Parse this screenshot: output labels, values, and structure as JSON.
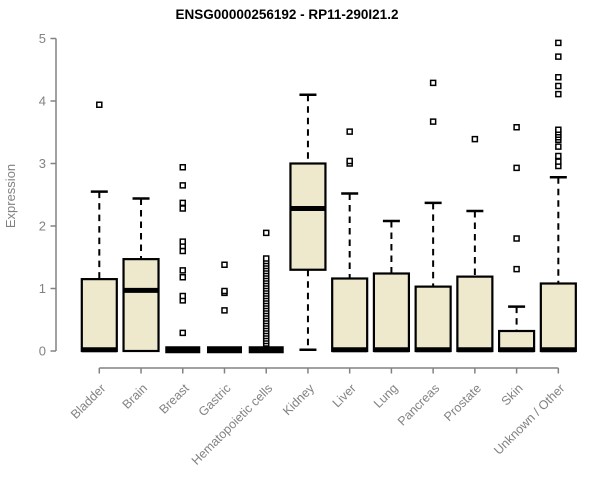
{
  "chart_data": {
    "type": "boxplot",
    "title": "ENSG00000256192 - RP11-290I21.2",
    "ylabel": "Expression",
    "xlabel": "",
    "ylim": [
      0,
      5
    ],
    "yticks": [
      0,
      1,
      2,
      3,
      4,
      5
    ],
    "grid": false,
    "legend": false,
    "categories": [
      "Bladder",
      "Brain",
      "Breast",
      "Gastric",
      "Hematopoietic cells",
      "Kidney",
      "Liver",
      "Lung",
      "Pancreas",
      "Prostate",
      "Skin",
      "Unknown / Other"
    ],
    "series": [
      {
        "category": "Bladder",
        "low": 0,
        "q1": 0,
        "median": 0.02,
        "q3": 1.15,
        "high": 2.55,
        "outliers": [
          3.94
        ]
      },
      {
        "category": "Brain",
        "low": 0,
        "q1": 0,
        "median": 0.97,
        "q3": 1.47,
        "high": 2.44,
        "outliers": []
      },
      {
        "category": "Breast",
        "low": 0,
        "q1": 0,
        "median": 0.02,
        "q3": 0.02,
        "high": 0.02,
        "outliers": [
          0.29,
          0.81,
          0.88,
          1.18,
          1.29,
          1.6,
          1.68,
          1.75,
          2.28,
          2.37,
          2.65,
          2.94
        ]
      },
      {
        "category": "Gastric",
        "low": 0,
        "q1": 0,
        "median": 0.02,
        "q3": 0.02,
        "high": 0.02,
        "outliers": [
          0.65,
          0.93,
          0.96,
          1.38
        ]
      },
      {
        "category": "Hematopoietic cells",
        "low": 0,
        "q1": 0,
        "median": 0.02,
        "q3": 0.02,
        "high": 0.02,
        "outliers": [
          0.12,
          0.16,
          0.2,
          0.24,
          0.28,
          0.32,
          0.36,
          0.4,
          0.44,
          0.48,
          0.52,
          0.56,
          0.6,
          0.64,
          0.68,
          0.72,
          0.76,
          0.8,
          0.84,
          0.88,
          0.92,
          0.96,
          1.0,
          1.04,
          1.08,
          1.12,
          1.16,
          1.2,
          1.24,
          1.28,
          1.32,
          1.36,
          1.4,
          1.44,
          1.48,
          1.89
        ]
      },
      {
        "category": "Kidney",
        "low": 0.02,
        "q1": 1.3,
        "median": 2.28,
        "q3": 3.0,
        "high": 4.1,
        "outliers": []
      },
      {
        "category": "Liver",
        "low": 0,
        "q1": 0,
        "median": 0.02,
        "q3": 1.16,
        "high": 2.52,
        "outliers": [
          3.0,
          3.04,
          3.51
        ]
      },
      {
        "category": "Lung",
        "low": 0,
        "q1": 0,
        "median": 0.02,
        "q3": 1.24,
        "high": 2.08,
        "outliers": []
      },
      {
        "category": "Pancreas",
        "low": 0,
        "q1": 0,
        "median": 0.02,
        "q3": 1.03,
        "high": 2.37,
        "outliers": [
          3.67,
          4.29
        ]
      },
      {
        "category": "Prostate",
        "low": 0,
        "q1": 0,
        "median": 0.02,
        "q3": 1.19,
        "high": 2.24,
        "outliers": [
          3.39
        ]
      },
      {
        "category": "Skin",
        "low": 0,
        "q1": 0,
        "median": 0.02,
        "q3": 0.32,
        "high": 0.71,
        "outliers": [
          1.31,
          1.8,
          2.93,
          3.58
        ]
      },
      {
        "category": "Unknown / Other",
        "low": 0,
        "q1": 0,
        "median": 0.02,
        "q3": 1.08,
        "high": 2.78,
        "outliers": [
          2.96,
          3.03,
          3.12,
          3.27,
          3.38,
          3.42,
          3.46,
          3.5,
          3.54,
          4.11,
          4.24,
          4.38,
          4.71,
          4.93
        ]
      }
    ],
    "colors": {
      "box_fill": "#EEE8CD",
      "box_border": "#000000",
      "median": "#000000",
      "whisker": "#000000",
      "outlier_fill": "#FFFFFF",
      "axis": "#828282",
      "tick_label": "#828282",
      "title": "#000000",
      "background": "#FFFFFF"
    }
  }
}
